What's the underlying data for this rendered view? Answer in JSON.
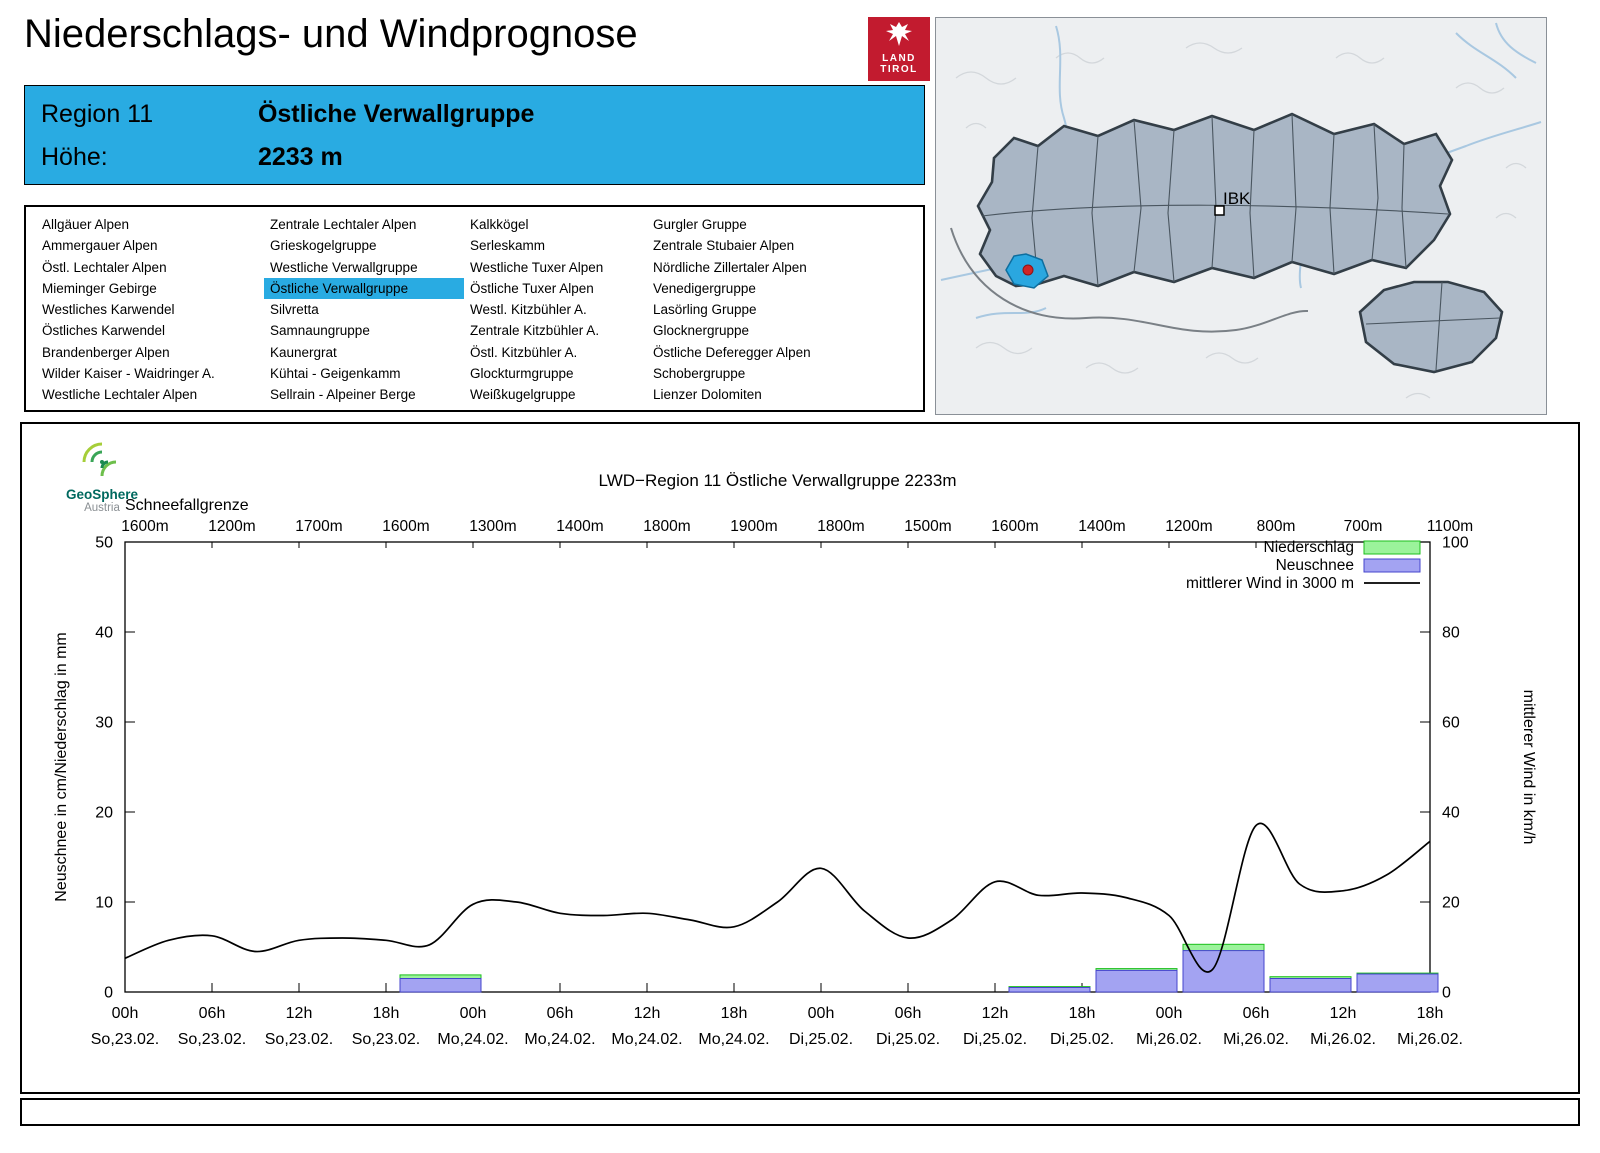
{
  "header": {
    "title": "Niederschlags- und Windprognose",
    "logo": {
      "line1": "LAND",
      "line2": "TIROL"
    }
  },
  "region_box": {
    "region_label": "Region 11",
    "region_name": "Östliche Verwallgruppe",
    "hoehe_label": "Höhe:",
    "hoehe_value": "2233 m",
    "accent_color": "#29abe2"
  },
  "region_list": {
    "selected": "Östliche Verwallgruppe",
    "columns": [
      [
        "Allgäuer Alpen",
        "Ammergauer Alpen",
        "Östl. Lechtaler Alpen",
        "Mieminger Gebirge",
        "Westliches Karwendel",
        "Östliches Karwendel",
        "Brandenberger Alpen",
        "Wilder Kaiser - Waidringer A.",
        "Westliche Lechtaler Alpen"
      ],
      [
        "Zentrale Lechtaler Alpen",
        "Grieskogelgruppe",
        "Westliche Verwallgruppe",
        "Östliche Verwallgruppe",
        "Silvretta",
        "Samnaungruppe",
        "Kaunergrat",
        "Kühtai - Geigenkamm",
        "Sellrain - Alpeiner Berge"
      ],
      [
        "Kalkkögel",
        "Serleskamm",
        "Westliche Tuxer Alpen",
        "Östliche Tuxer Alpen",
        "Westl. Kitzbühler A.",
        "Zentrale Kitzbühler A.",
        "Östl. Kitzbühler A.",
        "Glockturmgruppe",
        "Weißkugelgruppe"
      ],
      [
        "Gurgler Gruppe",
        "Zentrale Stubaier Alpen",
        "Nördliche Zillertaler Alpen",
        "Venedigergruppe",
        "Lasörling Gruppe",
        "Glocknergruppe",
        "Östliche Deferegger Alpen",
        "Schobergruppe",
        "Lienzer Dolomiten"
      ]
    ]
  },
  "map": {
    "ibk_label": "IBK",
    "highlight_color": "#2aa7e0"
  },
  "geosphere": {
    "name": "GeoSphere",
    "country": "Austria"
  },
  "chart_data": {
    "type": "bar",
    "title": "LWD−Region 11 Östliche Verwallgruppe 2233m",
    "snowline_label": "Schneefallgrenze",
    "snowline_values": [
      "1600m",
      "1200m",
      "1700m",
      "1600m",
      "1300m",
      "1400m",
      "1800m",
      "1900m",
      "1800m",
      "1500m",
      "1600m",
      "1400m",
      "1200m",
      "800m",
      "700m",
      "1100m"
    ],
    "x_time_labels": [
      "00h",
      "06h",
      "12h",
      "18h",
      "00h",
      "06h",
      "12h",
      "18h",
      "00h",
      "06h",
      "12h",
      "18h",
      "00h",
      "06h",
      "12h",
      "18h"
    ],
    "x_date_labels": [
      "So,23.02.",
      "So,23.02.",
      "So,23.02.",
      "So,23.02.",
      "Mo,24.02.",
      "Mo,24.02.",
      "Mo,24.02.",
      "Mo,24.02.",
      "Di,25.02.",
      "Di,25.02.",
      "Di,25.02.",
      "Di,25.02.",
      "Mi,26.02.",
      "Mi,26.02.",
      "Mi,26.02.",
      "Mi,26.02."
    ],
    "ylabel_left": "Neuschnee in cm/Niederschlag in mm",
    "ylabel_right": "mittlerer Wind in km/h",
    "ylim_left": [
      0,
      50
    ],
    "yticks_left": [
      0,
      10,
      20,
      30,
      40,
      50
    ],
    "ylim_right": [
      0,
      100
    ],
    "yticks_right": [
      0,
      20,
      40,
      60,
      80,
      100
    ],
    "grid": false,
    "legend_position": "top-right",
    "legend": [
      {
        "label": "Niederschlag",
        "type": "box",
        "color": "#9bf39b",
        "border": "#1cbf1c"
      },
      {
        "label": "Neuschnee",
        "type": "box",
        "color": "#a3a3f2",
        "border": "#4444cc"
      },
      {
        "label": "mittlerer Wind in 3000 m",
        "type": "line",
        "color": "#000000"
      }
    ],
    "series": {
      "niederschlag_mm": [
        0,
        0,
        0,
        1.9,
        0,
        0,
        0,
        0,
        0,
        0,
        0.6,
        2.6,
        5.3,
        1.7,
        2.1
      ],
      "neuschnee_cm": [
        0,
        0,
        0,
        1.5,
        0,
        0,
        0,
        0,
        0,
        0,
        0.5,
        2.4,
        4.6,
        1.5,
        2.0
      ],
      "wind_kmh": {
        "step_hours": 3,
        "values": [
          7.5,
          11.5,
          12.5,
          9,
          11.5,
          12,
          11.5,
          10.5,
          19.5,
          20,
          17.5,
          17,
          17.5,
          16,
          14.5,
          20,
          27.5,
          18,
          12,
          16,
          24.5,
          21.5,
          22,
          21,
          17,
          5,
          37,
          24,
          22.5,
          26,
          33.5
        ]
      }
    }
  }
}
